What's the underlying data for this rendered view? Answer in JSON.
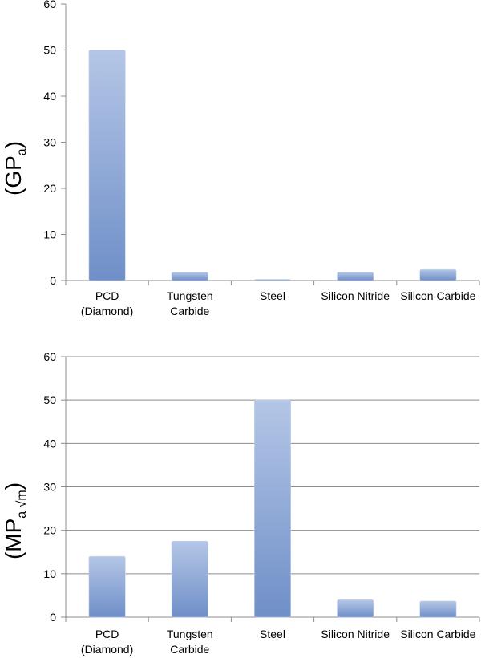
{
  "chart_data": [
    {
      "type": "bar",
      "categories": [
        [
          "PCD",
          "(Diamond)"
        ],
        [
          "Tungsten",
          "Carbide"
        ],
        [
          "Steel"
        ],
        [
          "Silicon Nitride"
        ],
        [
          "Silicon Carbide"
        ]
      ],
      "values": [
        50,
        1.8,
        0.2,
        1.8,
        2.4
      ],
      "title": "",
      "xlabel": "",
      "ylabel": {
        "main": "(GP",
        "sub": "a",
        "close": ")"
      },
      "ylim": [
        0,
        60
      ],
      "yticks": [
        0,
        10,
        20,
        30,
        40,
        50,
        60
      ],
      "grid": false,
      "colors": {
        "bar_light": "#b4c6e6",
        "bar_dark": "#6f8fc8",
        "axis": "#8c8c8c"
      }
    },
    {
      "type": "bar",
      "categories": [
        [
          "PCD",
          "(Diamond)"
        ],
        [
          "Tungsten",
          "Carbide"
        ],
        [
          "Steel"
        ],
        [
          "Silicon Nitride"
        ],
        [
          "Silicon Carbide"
        ]
      ],
      "values": [
        14,
        17.5,
        50,
        4,
        3.7
      ],
      "title": "",
      "xlabel": "",
      "ylabel": {
        "main": "(MP",
        "sub": "a √m",
        "close": ")"
      },
      "ylim": [
        0,
        60
      ],
      "yticks": [
        0,
        10,
        20,
        30,
        40,
        50,
        60
      ],
      "grid": true,
      "colors": {
        "bar_light": "#b4c6e6",
        "bar_dark": "#6f8fc8",
        "axis": "#8c8c8c",
        "grid": "#8c8c8c"
      }
    }
  ]
}
